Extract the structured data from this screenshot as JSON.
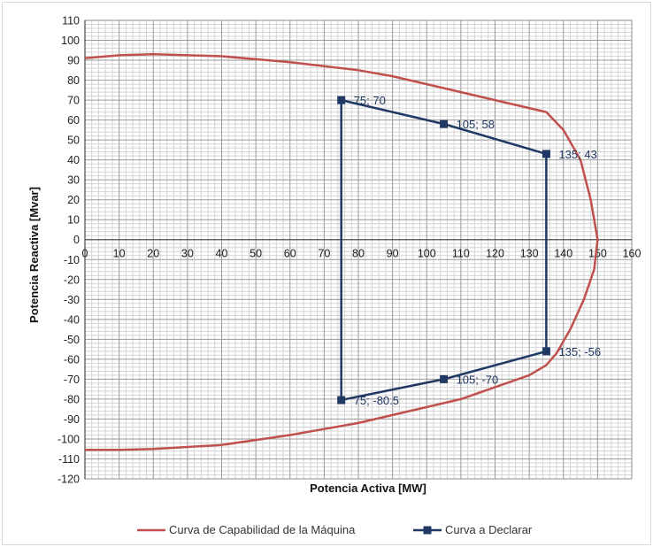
{
  "chart_data": {
    "type": "line",
    "xlabel": "Potencia Activa [MW]",
    "ylabel": "Potencia Reactiva [Mvar]",
    "xlim": [
      0,
      160
    ],
    "ylim": [
      -120,
      110
    ],
    "x_major_step": 10,
    "y_major_step": 10,
    "x_minor_step": 2,
    "y_minor_step": 2,
    "grid": true,
    "legend_position": "bottom",
    "series": [
      {
        "name": "Curva de Capabilidad de la Máquina",
        "color": "#c0504d",
        "x": [
          0,
          10,
          20,
          30,
          40,
          50,
          60,
          70,
          80,
          90,
          100,
          110,
          120,
          130,
          135,
          140,
          145,
          148,
          150,
          149,
          146,
          142,
          138,
          135,
          130,
          120,
          110,
          100,
          90,
          80,
          70,
          60,
          50,
          40,
          30,
          20,
          10,
          0
        ],
        "y": [
          91,
          92.5,
          93,
          92.5,
          92,
          90.5,
          89,
          87,
          85,
          82,
          78,
          74,
          70,
          66,
          64,
          55,
          40,
          20,
          0,
          -15,
          -30,
          -45,
          -57,
          -63,
          -68,
          -74,
          -80,
          -84,
          -88,
          -92,
          -95,
          -98,
          -100.5,
          -103,
          -104,
          -105,
          -105.5,
          -105.5
        ]
      },
      {
        "name": "Curva a Declarar",
        "color": "#1f3864",
        "x": [
          75,
          105,
          135,
          135,
          105,
          75,
          75
        ],
        "y": [
          70,
          58,
          43,
          -56,
          -70,
          -80.5,
          70
        ],
        "labels": [
          "75; 70",
          "105; 58",
          "135; 43",
          "135; -56",
          "105; -70",
          "75; -80.5"
        ]
      }
    ]
  }
}
